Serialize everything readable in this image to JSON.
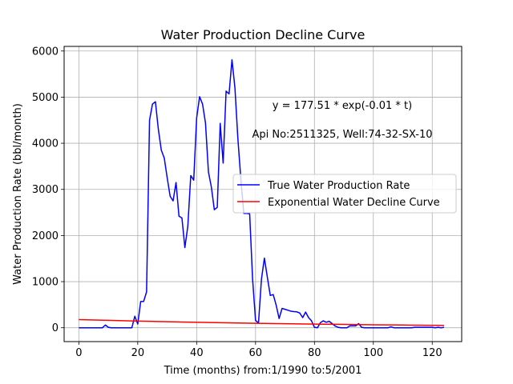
{
  "chart_data": {
    "type": "line",
    "title": "Water Production Decline Curve",
    "xlabel": "Time (months) from:1/1990 to:5/2001",
    "ylabel": "Water Production Rate (bbl/month)",
    "xlim": [
      -5,
      130
    ],
    "ylim": [
      -300,
      6100
    ],
    "xticks": [
      0,
      20,
      40,
      60,
      80,
      100,
      120
    ],
    "yticks": [
      0,
      1000,
      2000,
      3000,
      4000,
      5000,
      6000
    ],
    "grid": true,
    "legend_position": "center-right",
    "annotations": [
      "y = 177.51 * exp(-0.01 * t)",
      "Api No:2511325, Well:74-32-SX-10"
    ],
    "series": [
      {
        "name": "True Water Production Rate",
        "color": "#0000ff",
        "x": [
          0,
          1,
          2,
          3,
          4,
          5,
          6,
          7,
          8,
          9,
          10,
          11,
          12,
          13,
          14,
          15,
          16,
          17,
          18,
          19,
          20,
          21,
          22,
          23,
          24,
          25,
          26,
          27,
          28,
          29,
          30,
          31,
          32,
          33,
          34,
          35,
          36,
          37,
          38,
          39,
          40,
          41,
          42,
          43,
          44,
          45,
          46,
          47,
          48,
          49,
          50,
          51,
          52,
          53,
          54,
          55,
          56,
          57,
          58,
          59,
          60,
          61,
          62,
          63,
          64,
          65,
          66,
          67,
          68,
          69,
          70,
          71,
          72,
          73,
          74,
          75,
          76,
          77,
          78,
          79,
          80,
          81,
          82,
          83,
          84,
          85,
          86,
          87,
          88,
          89,
          90,
          91,
          92,
          93,
          94,
          95,
          96,
          97,
          98,
          99,
          100,
          101,
          102,
          103,
          104,
          105,
          106,
          107,
          108,
          109,
          110,
          111,
          112,
          113,
          114,
          115,
          116,
          117,
          118,
          119,
          120,
          121,
          122,
          123,
          124
        ],
        "values": [
          0,
          0,
          0,
          0,
          0,
          0,
          0,
          0,
          0,
          60,
          10,
          0,
          0,
          0,
          0,
          0,
          0,
          0,
          0,
          250,
          80,
          570,
          570,
          780,
          4500,
          4850,
          4900,
          4300,
          3850,
          3680,
          3250,
          2850,
          2750,
          3150,
          2420,
          2380,
          1740,
          2200,
          3300,
          3200,
          4550,
          5010,
          4850,
          4440,
          3380,
          3050,
          2560,
          2610,
          4430,
          3570,
          5130,
          5070,
          5810,
          5200,
          4100,
          3230,
          2480,
          2480,
          2470,
          1050,
          160,
          100,
          1050,
          1510,
          1100,
          700,
          720,
          490,
          200,
          420,
          400,
          380,
          360,
          350,
          345,
          320,
          220,
          340,
          220,
          150,
          10,
          0,
          110,
          150,
          120,
          140,
          90,
          40,
          10,
          0,
          0,
          0,
          40,
          40,
          40,
          90,
          10,
          0,
          0,
          0,
          0,
          0,
          0,
          0,
          0,
          0,
          20,
          0,
          0,
          0,
          0,
          0,
          0,
          0,
          10,
          10,
          10,
          10,
          10,
          10,
          10,
          0,
          10,
          0,
          10
        ]
      },
      {
        "name": "Exponential Water Decline Curve",
        "color": "#ff0000",
        "x": [
          0,
          10,
          20,
          30,
          40,
          50,
          60,
          70,
          80,
          90,
          100,
          110,
          120,
          124
        ],
        "values": [
          178,
          161,
          145,
          132,
          119,
          108,
          97,
          88,
          80,
          72,
          65,
          59,
          53,
          51
        ]
      }
    ]
  }
}
